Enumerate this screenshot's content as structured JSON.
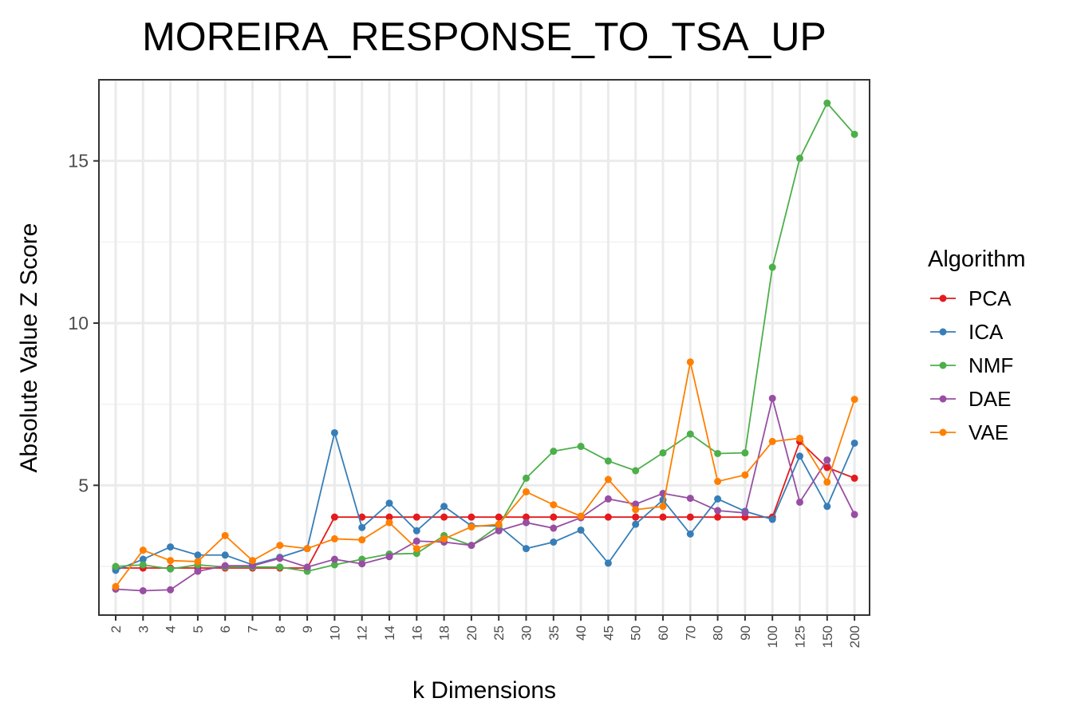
{
  "chart_data": {
    "type": "line",
    "title": "MOREIRA_RESPONSE_TO_TSA_UP",
    "xlabel": "k Dimensions",
    "ylabel": "Absolute Value Z Score",
    "categories": [
      "2",
      "3",
      "4",
      "5",
      "6",
      "7",
      "8",
      "9",
      "10",
      "12",
      "14",
      "16",
      "18",
      "20",
      "25",
      "30",
      "35",
      "40",
      "45",
      "50",
      "60",
      "70",
      "80",
      "90",
      "100",
      "125",
      "150",
      "200"
    ],
    "ylim": [
      1.0,
      17.5
    ],
    "yticks": [
      5,
      10,
      15
    ],
    "grid": true,
    "legend_title": "Algorithm",
    "legend_position": "right",
    "series": [
      {
        "name": "PCA",
        "color": "#e41a1c",
        "values": [
          2.45,
          2.45,
          2.45,
          2.45,
          2.45,
          2.45,
          2.45,
          2.45,
          4.02,
          4.02,
          4.02,
          4.02,
          4.02,
          4.02,
          4.02,
          4.02,
          4.02,
          4.02,
          4.02,
          4.02,
          4.02,
          4.02,
          4.02,
          4.02,
          4.02,
          6.35,
          5.55,
          5.22
        ]
      },
      {
        "name": "ICA",
        "color": "#377eb8",
        "values": [
          2.38,
          2.72,
          3.1,
          2.85,
          2.85,
          2.55,
          2.78,
          3.05,
          6.62,
          3.7,
          4.45,
          3.6,
          4.35,
          3.75,
          3.75,
          3.05,
          3.25,
          3.62,
          2.6,
          3.8,
          4.55,
          3.5,
          4.58,
          4.2,
          3.95,
          5.9,
          4.35,
          6.3
        ]
      },
      {
        "name": "NMF",
        "color": "#4daf4a",
        "values": [
          2.5,
          2.55,
          2.42,
          2.55,
          2.48,
          2.48,
          2.48,
          2.35,
          2.55,
          2.72,
          2.88,
          2.9,
          3.45,
          3.15,
          3.75,
          5.22,
          6.05,
          6.2,
          5.75,
          5.45,
          6.0,
          6.58,
          5.98,
          6.0,
          11.72,
          15.08,
          16.78,
          15.82
        ]
      },
      {
        "name": "DAE",
        "color": "#984ea3",
        "values": [
          1.8,
          1.75,
          1.78,
          2.35,
          2.52,
          2.52,
          2.75,
          2.48,
          2.72,
          2.58,
          2.8,
          3.28,
          3.25,
          3.15,
          3.6,
          3.85,
          3.68,
          4.0,
          4.58,
          4.42,
          4.75,
          4.6,
          4.22,
          4.15,
          7.68,
          4.48,
          5.78,
          4.1
        ]
      },
      {
        "name": "VAE",
        "color": "#ff7f00",
        "values": [
          1.88,
          3.0,
          2.68,
          2.65,
          3.45,
          2.68,
          3.15,
          3.05,
          3.35,
          3.32,
          3.85,
          3.05,
          3.35,
          3.72,
          3.8,
          4.8,
          4.4,
          4.05,
          5.18,
          4.25,
          4.35,
          8.8,
          5.12,
          5.32,
          6.35,
          6.45,
          5.1,
          7.65
        ]
      }
    ]
  }
}
